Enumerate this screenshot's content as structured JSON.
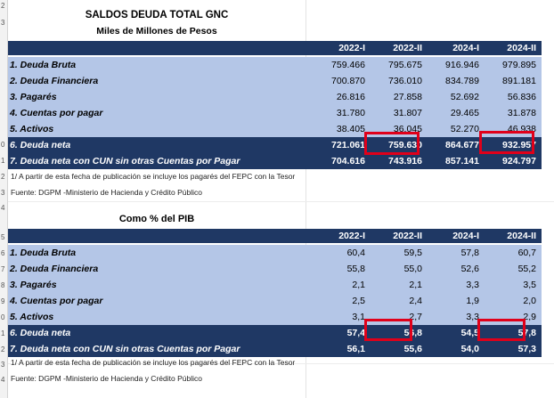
{
  "table1": {
    "title": "SALDOS DEUDA TOTAL GNC",
    "subtitle": "Miles de Millones de Pesos",
    "columns": [
      "2022-I",
      "2022-II",
      "2024-I",
      "2024-II"
    ],
    "rows": [
      {
        "label": "1. Deuda Bruta",
        "values": [
          "759.466",
          "795.675",
          "916.946",
          "979.895"
        ]
      },
      {
        "label": "2. Deuda Financiera",
        "values": [
          "700.870",
          "736.010",
          "834.789",
          "891.181"
        ]
      },
      {
        "label": "3. Pagarés",
        "values": [
          "26.816",
          "27.858",
          "52.692",
          "56.836"
        ]
      },
      {
        "label": "4. Cuentas por pagar",
        "values": [
          "31.780",
          "31.807",
          "29.465",
          "31.878"
        ]
      },
      {
        "label": "5. Activos",
        "values": [
          "38.405",
          "36.045",
          "52.270",
          "46.938"
        ]
      },
      {
        "label": "6. Deuda neta",
        "values": [
          "721.061",
          "759.630",
          "864.677",
          "932.957"
        ]
      },
      {
        "label": "7. Deuda neta con CUN sin otras Cuentas por Pagar",
        "values": [
          "704.616",
          "743.916",
          "857.141",
          "924.797"
        ]
      }
    ],
    "note1": "1/ A partir de esta fecha de publicación se incluye los pagarés del FEPC con la Tesor",
    "source": "Fuente: DGPM -Ministerio de Hacienda y Crédito Público"
  },
  "table2": {
    "title": "Como % del PIB",
    "columns": [
      "2022-I",
      "2022-II",
      "2024-I",
      "2024-II"
    ],
    "rows": [
      {
        "label": "1. Deuda Bruta",
        "values": [
          "60,4",
          "59,5",
          "57,8",
          "60,7"
        ]
      },
      {
        "label": "2. Deuda Financiera",
        "values": [
          "55,8",
          "55,0",
          "52,6",
          "55,2"
        ]
      },
      {
        "label": "3. Pagarés",
        "values": [
          "2,1",
          "2,1",
          "3,3",
          "3,5"
        ]
      },
      {
        "label": "4. Cuentas por pagar",
        "values": [
          "2,5",
          "2,4",
          "1,9",
          "2,0"
        ]
      },
      {
        "label": "5. Activos",
        "values": [
          "3,1",
          "2,7",
          "3,3",
          "2,9"
        ]
      },
      {
        "label": "6. Deuda neta",
        "values": [
          "57,4",
          "56,8",
          "54,5",
          "57,8"
        ]
      },
      {
        "label": "7. Deuda neta con CUN sin otras Cuentas por Pagar",
        "values": [
          "56,1",
          "55,6",
          "54,0",
          "57,3"
        ]
      }
    ],
    "note1": "1/ A partir de esta fecha de publicación se incluye los pagarés del FEPC con la Tesor",
    "source": "Fuente: DGPM -Ministerio de Hacienda y Crédito Público"
  },
  "row_numbers": [
    "2",
    "3",
    "4",
    "5",
    "6",
    "7",
    "8",
    "9",
    "0",
    "1",
    "2",
    "3",
    "4",
    "5",
    "6",
    "7",
    "8",
    "9",
    "0",
    "1",
    "2",
    "3",
    "4"
  ],
  "colors": {
    "header_bg": "#1f3864",
    "row_bg": "#b4c6e7",
    "highlight": "#e0001a"
  }
}
